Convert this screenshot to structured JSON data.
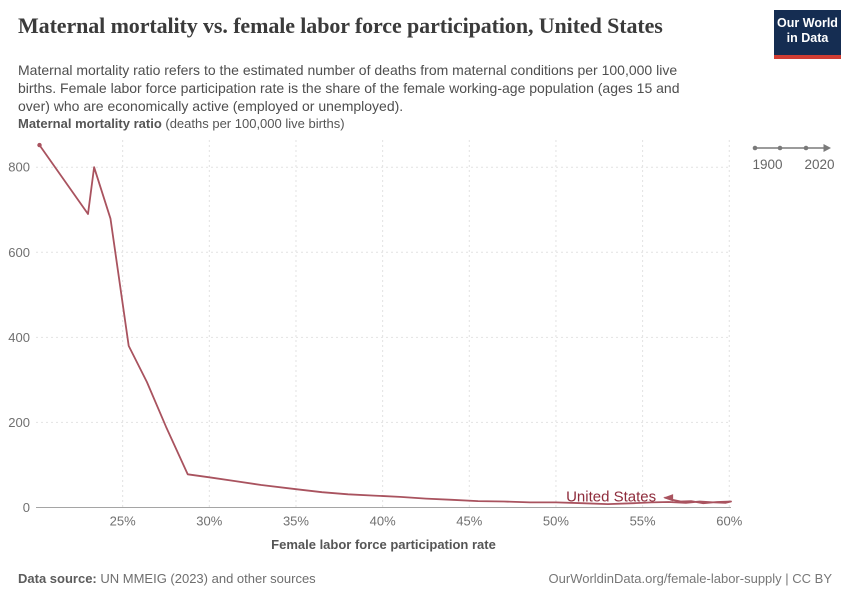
{
  "header": {
    "title": "Maternal mortality vs. female labor force participation, United States",
    "subtitle_lines": [
      "Maternal mortality ratio refers to the estimated number of deaths from maternal conditions per 100,000 live",
      "births. Female labor force participation rate is the share of the female working-age population (ages 15 and",
      "over) who are economically active (employed or unemployed)."
    ],
    "logo": {
      "line1": "Our World",
      "line2": "in Data"
    }
  },
  "timeline": {
    "start_label": "1900",
    "end_label": "2020"
  },
  "chart_data": {
    "type": "line",
    "title": "Maternal mortality vs. female labor force participation, United States",
    "entity_label": "United States",
    "ylabel_bold": "Maternal mortality ratio",
    "ylabel_note": " (deaths per 100,000 live births)",
    "xlabel": "Female labor force participation rate",
    "xlim": [
      20.0,
      60.1
    ],
    "ylim": [
      0,
      864
    ],
    "grid": true,
    "legend_position": "end-of-line-label",
    "xticks": [
      {
        "v": 25,
        "label": "25%"
      },
      {
        "v": 30,
        "label": "30%"
      },
      {
        "v": 35,
        "label": "35%"
      },
      {
        "v": 40,
        "label": "40%"
      },
      {
        "v": 45,
        "label": "45%"
      },
      {
        "v": 50,
        "label": "50%"
      },
      {
        "v": 55,
        "label": "55%"
      },
      {
        "v": 60,
        "label": "60%"
      }
    ],
    "yticks": [
      {
        "v": 0,
        "label": "0"
      },
      {
        "v": 200,
        "label": "200"
      },
      {
        "v": 400,
        "label": "400"
      },
      {
        "v": 600,
        "label": "600"
      },
      {
        "v": 800,
        "label": "800"
      }
    ],
    "points": [
      [
        20.2,
        852
      ],
      [
        23.0,
        690
      ],
      [
        23.35,
        800
      ],
      [
        24.3,
        679
      ],
      [
        25.35,
        380
      ],
      [
        26.4,
        295
      ],
      [
        27.5,
        190
      ],
      [
        28.75,
        78
      ],
      [
        30.0,
        71
      ],
      [
        31.5,
        62
      ],
      [
        33.0,
        53
      ],
      [
        35.0,
        43
      ],
      [
        36.5,
        36
      ],
      [
        38.0,
        31
      ],
      [
        39.5,
        28
      ],
      [
        41.0,
        25
      ],
      [
        42.5,
        21
      ],
      [
        44.0,
        18
      ],
      [
        45.5,
        15
      ],
      [
        47.0,
        14
      ],
      [
        48.5,
        12
      ],
      [
        50.0,
        12
      ],
      [
        51.5,
        10
      ],
      [
        53.0,
        8
      ],
      [
        54.5,
        10
      ],
      [
        55.5,
        12
      ],
      [
        56.5,
        13
      ],
      [
        57.5,
        11
      ],
      [
        58.3,
        14
      ],
      [
        59.1,
        12
      ],
      [
        59.8,
        11
      ],
      [
        60.1,
        14
      ],
      [
        59.3,
        13
      ],
      [
        58.5,
        10
      ],
      [
        57.8,
        15
      ],
      [
        57.2,
        14
      ],
      [
        56.7,
        18
      ],
      [
        56.3,
        23
      ]
    ]
  },
  "footer": {
    "source_label": "Data source:",
    "source_text": " UN MMEIG (2023) and other sources",
    "right_text": "OurWorldinData.org/female-labor-supply | CC BY"
  },
  "colors": {
    "line": "#a9535f",
    "entity_label": "#8e2b3b",
    "grid": "#e2e2e2",
    "axis": "#a5a5a5",
    "tick_text": "#707070",
    "timeline": "#7a7a7a",
    "logo_bg": "#152d52",
    "logo_bar": "#d13d33"
  }
}
